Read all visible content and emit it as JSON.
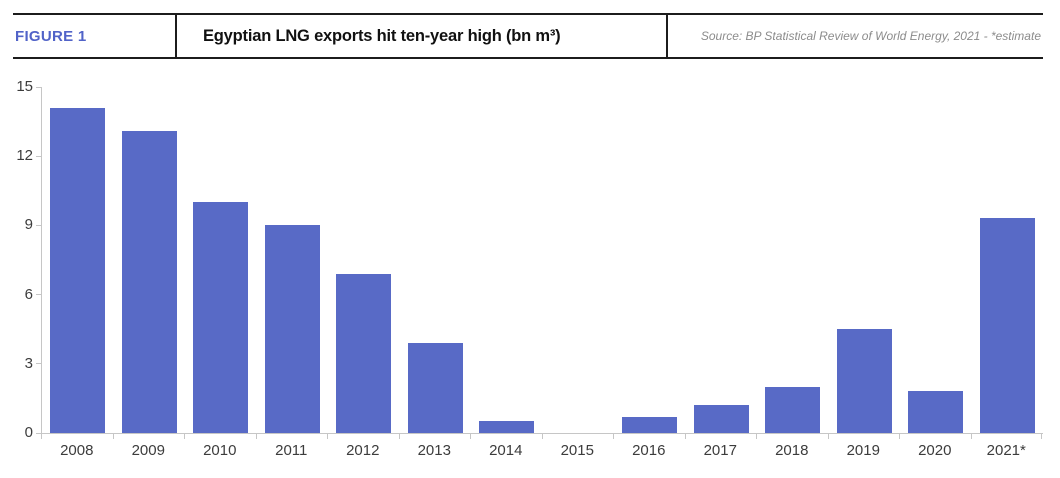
{
  "header": {
    "figure_label": "FIGURE 1",
    "title": "Egyptian LNG exports hit ten-year high (bn m³)",
    "source": "Source: BP Statistical Review of World Energy, 2021 - *estimate"
  },
  "colors": {
    "bar": "#586ac6",
    "figure_label": "#5163c8",
    "header_line": "#1c1c1c",
    "title_text": "#111111",
    "source_text": "#8c8c8c",
    "axis_line": "#c6c6c6",
    "axis_text": "#3c3c3c"
  },
  "chart_data": {
    "type": "bar",
    "title": "Egyptian LNG exports hit ten-year high (bn m³)",
    "categories": [
      "2008",
      "2009",
      "2010",
      "2011",
      "2012",
      "2013",
      "2014",
      "2015",
      "2016",
      "2017",
      "2018",
      "2019",
      "2020",
      "2021*"
    ],
    "values": [
      14.1,
      13.1,
      10.0,
      9.0,
      6.9,
      3.9,
      0.5,
      0,
      0.7,
      1.2,
      2.0,
      4.5,
      1.8,
      9.3
    ],
    "xlabel": "",
    "ylabel": "",
    "ylim": [
      0,
      15
    ],
    "yticks": [
      0,
      3,
      6,
      9,
      12,
      15
    ],
    "grid": false,
    "legend": false,
    "bar_color": "#586ac6"
  }
}
